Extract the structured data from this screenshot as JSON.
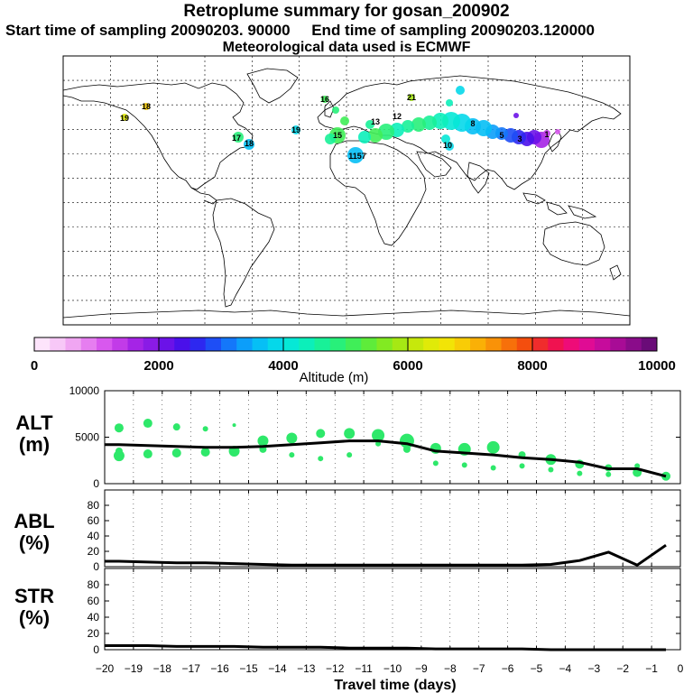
{
  "header": {
    "title": "Retroplume summary for gosan_200902",
    "sampling": "Start time of sampling 20090203. 90000     End time of sampling 20090203.120000",
    "met": "Meteorological data used is ECMWF"
  },
  "colorbar": {
    "label": "Altitude (m)",
    "ticks": [
      "0",
      "2000",
      "4000",
      "6000",
      "8000",
      "10000"
    ],
    "colors": [
      "#fde4fb",
      "#f7c8f7",
      "#f0a6f2",
      "#e67ef0",
      "#d858ee",
      "#c23be8",
      "#a524e6",
      "#8a1be6",
      "#6b12e8",
      "#4a10ea",
      "#2d28f0",
      "#1e4ef6",
      "#1477fa",
      "#0c9efa",
      "#06bff5",
      "#05d8ea",
      "#06e8d6",
      "#0cefba",
      "#18f198",
      "#28f07a",
      "#40ee58",
      "#5eec3a",
      "#82ea22",
      "#a6e814",
      "#c6e80c",
      "#e0ea08",
      "#f2e406",
      "#f8cc06",
      "#fab006",
      "#f99208",
      "#f7700a",
      "#f44e0e",
      "#f02c2c",
      "#f01250",
      "#ee0c78",
      "#e00c94",
      "#c60c9c",
      "#a80c96",
      "#8a0c8a",
      "#6a0c78"
    ]
  },
  "map_labels": [
    {
      "text": "19",
      "color": "#e6e630"
    },
    {
      "text": "18",
      "color": "#f2c020"
    },
    {
      "text": "17",
      "color": "#3ee890"
    },
    {
      "text": "18",
      "color": "#10d6ee"
    },
    {
      "text": "19",
      "color": "#10d6ee"
    },
    {
      "text": "16",
      "color": "#1ee8a0"
    },
    {
      "text": "15",
      "color": "#2ee870"
    },
    {
      "text": "1157",
      "color": "#10c8f0"
    },
    {
      "text": "13",
      "color": "#22e8b0"
    },
    {
      "text": "12",
      "color": "#22e8b0"
    },
    {
      "text": "10",
      "color": "#10d8e0"
    },
    {
      "text": "8",
      "color": "#10d8e0"
    },
    {
      "text": "5",
      "color": "#1498f8"
    },
    {
      "text": "3",
      "color": "#1a80f8"
    },
    {
      "text": "1",
      "color": "#c030e8"
    },
    {
      "text": "21",
      "color": "#c8e820"
    }
  ],
  "chart_data": [
    {
      "type": "scatter",
      "title": "ALT (m)",
      "ylabel": "ALT (m)",
      "ylim": [
        0,
        10000
      ],
      "yticks": [
        "0",
        "5000",
        "10000"
      ],
      "xlim": [
        -20,
        0
      ],
      "mean_line": {
        "x": [
          -20,
          -19.5,
          -18.5,
          -17.5,
          -16.5,
          -15.5,
          -14.5,
          -13.5,
          -12.5,
          -11.5,
          -10.5,
          -9.5,
          -8.5,
          -7.5,
          -6.5,
          -5.5,
          -4.5,
          -3.5,
          -2.5,
          -1.5,
          -0.5
        ],
        "y": [
          4200,
          4200,
          4100,
          4000,
          3900,
          3900,
          4000,
          4200,
          4400,
          4600,
          4600,
          4300,
          3500,
          3300,
          3100,
          2800,
          2600,
          2300,
          1600,
          1600,
          800
        ]
      },
      "points": {
        "x": [
          -19.5,
          -19.5,
          -19.5,
          -18.5,
          -18.5,
          -17.5,
          -17.5,
          -16.5,
          -16.5,
          -15.5,
          -15.5,
          -14.5,
          -14.5,
          -13.5,
          -13.5,
          -12.5,
          -12.5,
          -11.5,
          -11.5,
          -10.5,
          -10.5,
          -9.5,
          -9.5,
          -8.5,
          -8.5,
          -7.5,
          -7.5,
          -6.5,
          -6.5,
          -5.5,
          -5.5,
          -4.5,
          -4.5,
          -3.5,
          -3.5,
          -2.5,
          -2.5,
          -1.5,
          -1.5,
          -0.5
        ],
        "y": [
          6000,
          3500,
          3000,
          6500,
          3200,
          6100,
          3300,
          5900,
          3400,
          6300,
          3500,
          4600,
          3700,
          4900,
          3100,
          5400,
          2700,
          5400,
          3100,
          5200,
          4300,
          4600,
          3700,
          3800,
          2200,
          3700,
          2000,
          3900,
          1700,
          3100,
          1900,
          2600,
          1500,
          2100,
          1100,
          1700,
          1000,
          1900,
          1200,
          800
        ],
        "sizes": [
          5,
          4,
          6,
          5,
          5,
          4,
          5,
          3,
          5,
          2,
          6,
          6,
          4,
          6,
          3,
          5,
          3,
          6,
          3,
          7,
          3,
          8,
          4,
          6,
          3,
          7,
          3,
          7,
          3,
          4,
          3,
          6,
          3,
          5,
          3,
          4,
          3,
          3,
          5,
          5
        ]
      }
    },
    {
      "type": "line",
      "title": "ABL (%)",
      "ylabel": "ABL (%)",
      "ylim": [
        0,
        100
      ],
      "yticks": [
        "0",
        "20",
        "40",
        "60",
        "80"
      ],
      "xlim": [
        -20,
        0
      ],
      "x": [
        -20,
        -19.5,
        -18.5,
        -17.5,
        -16.5,
        -15.5,
        -14.5,
        -13.5,
        -12.5,
        -11.5,
        -10.5,
        -9.5,
        -8.5,
        -7.5,
        -6.5,
        -5.5,
        -4.5,
        -3.5,
        -2.5,
        -1.5,
        -0.5
      ],
      "y": [
        7,
        7,
        6,
        5,
        5,
        4,
        3,
        2,
        2,
        2,
        2,
        2,
        2,
        2,
        2,
        2,
        3,
        8,
        19,
        2,
        28
      ]
    },
    {
      "type": "line",
      "title": "STR (%)",
      "ylabel": "STR (%)",
      "ylim": [
        0,
        100
      ],
      "yticks": [
        "0",
        "20",
        "40",
        "60",
        "80"
      ],
      "xlim": [
        -20,
        0
      ],
      "x": [
        -20,
        -19.5,
        -18.5,
        -17.5,
        -16.5,
        -15.5,
        -14.5,
        -13.5,
        -12.5,
        -11.5,
        -10.5,
        -9.5,
        -8.5,
        -7.5,
        -6.5,
        -5.5,
        -4.5,
        -3.5,
        -2.5,
        -1.5,
        -0.5
      ],
      "y": [
        5,
        5,
        5,
        4,
        4,
        4,
        3,
        3,
        3,
        2,
        2,
        2,
        1,
        1,
        1,
        1,
        0,
        0,
        0,
        0,
        0
      ]
    }
  ],
  "xaxis": {
    "label": "Travel time (days)",
    "ticks": [
      "−20",
      "−19",
      "−18",
      "−17",
      "−16",
      "−15",
      "−14",
      "−13",
      "−12",
      "−11",
      "−10",
      "−9",
      "−8",
      "−7",
      "−6",
      "−5",
      "−4",
      "−3",
      "−2",
      "−1",
      "0"
    ]
  },
  "panel_labels": {
    "alt": [
      "ALT",
      "(m)"
    ],
    "abl": [
      "ABL",
      "(%)"
    ],
    "str": [
      "STR",
      "(%)"
    ]
  },
  "style": {
    "point_color": "#2ee86a",
    "line_color": "#000000"
  }
}
